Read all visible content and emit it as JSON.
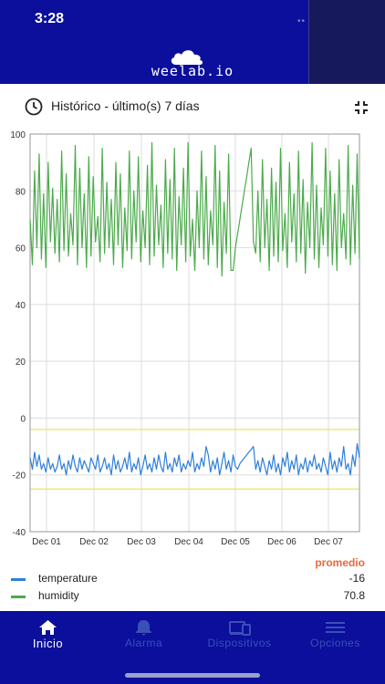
{
  "status": {
    "time": "3:28"
  },
  "brand": {
    "name": "weelab.io"
  },
  "history": {
    "title": "Histórico - último(s) 7 días",
    "clock_icon": "clock-icon",
    "collapse_icon": "collapse-icon"
  },
  "colors": {
    "header": "#0b0f9c",
    "temperature": "#2f7fd9",
    "humidity": "#4caa4c",
    "promedio": "#e8693a",
    "threshold": "#e8e85a"
  },
  "chart_data": {
    "type": "line",
    "ylim": [
      -40,
      100
    ],
    "yticks": [
      "100",
      "80",
      "60",
      "40",
      "20",
      "0",
      "-20",
      "-40"
    ],
    "xticks": [
      "Dec 01",
      "Dec 02",
      "Dec 03",
      "Dec 04",
      "Dec 05",
      "Dec 06",
      "Dec 07"
    ],
    "threshold_lines": [
      -4,
      -25
    ],
    "series": [
      {
        "name": "temperature",
        "values": [
          -14,
          -18,
          -12,
          -17,
          -13,
          -18,
          -16,
          -19,
          -14,
          -18,
          -16,
          -19,
          -17,
          -13,
          -18,
          -16,
          -20,
          -15,
          -18,
          -13,
          -17,
          -19,
          -14,
          -18,
          -15,
          -17,
          -19,
          -14,
          -16,
          -18,
          -13,
          -19,
          -17,
          -14,
          -18,
          -16,
          -20,
          -13,
          -18,
          -15,
          -19,
          -17,
          -14,
          -18,
          -12,
          -19,
          -16,
          -18,
          -14,
          -20,
          -17,
          -13,
          -18,
          -16,
          -19,
          -14,
          -18,
          -13,
          -17,
          -19,
          -12,
          -18,
          -16,
          -19,
          -14,
          -17,
          -13,
          -19,
          -16,
          -18,
          -15,
          -17,
          -12,
          -19,
          -16,
          -18,
          -14,
          -17,
          -10,
          -13,
          -19,
          -15,
          -18,
          -14,
          -20,
          -16,
          -12,
          -18,
          -15,
          -19,
          -13,
          -17,
          -18,
          -16,
          -15,
          -14,
          -13,
          -12,
          -11,
          -10,
          -18,
          -15,
          -19,
          -14,
          -17,
          -20,
          -15,
          -18,
          -13,
          -19,
          -16,
          -20,
          -14,
          -17,
          -12,
          -19,
          -15,
          -18,
          -13,
          -20,
          -16,
          -18,
          -14,
          -19,
          -15,
          -17,
          -13,
          -18,
          -16,
          -19,
          -14,
          -17,
          -20,
          -12,
          -18,
          -15,
          -19,
          -14,
          -17,
          -10,
          -18,
          -16,
          -20,
          -13,
          -17,
          -9,
          -14
        ],
        "mean_label": "-16"
      },
      {
        "name": "humidity",
        "values": [
          70,
          54,
          87,
          60,
          93,
          56,
          79,
          53,
          90,
          62,
          81,
          58,
          77,
          55,
          94,
          59,
          86,
          57,
          72,
          61,
          96,
          54,
          88,
          60,
          79,
          53,
          92,
          57,
          85,
          62,
          71,
          55,
          95,
          58,
          83,
          60,
          77,
          54,
          90,
          61,
          86,
          53,
          74,
          59,
          94,
          56,
          80,
          62,
          92,
          55,
          73,
          60,
          89,
          54,
          97,
          57,
          82,
          61,
          75,
          53,
          91,
          58,
          84,
          56,
          95,
          52,
          78,
          61,
          88,
          55,
          97,
          57,
          70,
          52,
          80,
          60,
          94,
          56,
          85,
          54,
          73,
          61,
          96,
          53,
          87,
          50,
          76,
          58,
          93,
          52,
          52,
          60,
          65,
          70,
          75,
          80,
          85,
          90,
          95,
          62,
          58,
          80,
          55,
          91,
          60,
          77,
          52,
          88,
          57,
          83,
          55,
          95,
          59,
          72,
          53,
          90,
          62,
          79,
          55,
          94,
          58,
          84,
          51,
          76,
          60,
          97,
          56,
          82,
          53,
          74,
          61,
          95,
          57,
          87,
          54,
          79,
          52,
          91,
          60,
          72,
          56,
          96,
          54,
          82,
          58,
          93,
          56
        ],
        "mean_label": "70.8"
      }
    ]
  },
  "legend": {
    "header": "promedio",
    "items": [
      {
        "name": "temperature",
        "value": "-16"
      },
      {
        "name": "humidity",
        "value": "70.8"
      }
    ]
  },
  "tabs": [
    {
      "label": "Inicio",
      "icon": "home-icon",
      "active": true
    },
    {
      "label": "Alarma",
      "icon": "bell-icon",
      "active": false
    },
    {
      "label": "Dispositivos",
      "icon": "devices-icon",
      "active": false
    },
    {
      "label": "Opciones",
      "icon": "menu-icon",
      "active": false
    }
  ]
}
